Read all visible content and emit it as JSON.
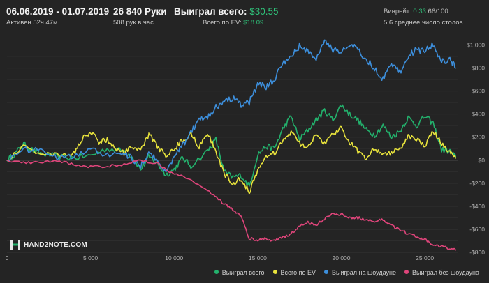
{
  "header": {
    "date_range": "06.06.2019 - 01.07.2019",
    "active": "Активен 52ч 47м",
    "hands": "26 840 Руки",
    "hands_per_hour": "508 рук в час",
    "won_total_label": "Выиграл всего:",
    "won_total_value": "$30.55",
    "ev_total_label": "Всего по EV:",
    "ev_total_value": "$18.09",
    "winrate_label": "Винрейт:",
    "winrate_value": "0.33",
    "winrate_unit": "66/100",
    "tables_avg": "5.6 среднее число столов"
  },
  "logo": {
    "text": "HAND2NOTE.COM"
  },
  "legend": [
    {
      "label": "Выиграл всего",
      "color": "#23b26d"
    },
    {
      "label": "Всего по EV",
      "color": "#e8e33c"
    },
    {
      "label": "Выиграл на шоудауне",
      "color": "#3d8fdc"
    },
    {
      "label": "Выиграл без шоудауна",
      "color": "#e0457b"
    }
  ],
  "chart_data": {
    "type": "line",
    "title": "",
    "xlabel": "Руки",
    "ylabel": "$",
    "xlim": [
      0,
      27000
    ],
    "ylim": [
      -800,
      1100
    ],
    "x_ticks": [
      0,
      5000,
      10000,
      15000,
      20000,
      25000
    ],
    "x_tick_labels": [
      "0",
      "5 000",
      "10 000",
      "15 000",
      "20 000",
      "25 000"
    ],
    "y_ticks": [
      -800,
      -600,
      -400,
      -200,
      0,
      200,
      400,
      600,
      800,
      1000
    ],
    "y_tick_labels": [
      "-$800",
      "-$600",
      "-$400",
      "-$200",
      "$0",
      "$200",
      "$400",
      "$600",
      "$800",
      "$1,000"
    ],
    "grid": true,
    "series": [
      {
        "name": "Выиграл всего",
        "color": "#23b26d",
        "points": [
          [
            0,
            0
          ],
          [
            500,
            60
          ],
          [
            1000,
            140
          ],
          [
            1500,
            90
          ],
          [
            2000,
            60
          ],
          [
            3000,
            30
          ],
          [
            4000,
            20
          ],
          [
            5000,
            40
          ],
          [
            6000,
            100
          ],
          [
            7000,
            80
          ],
          [
            7500,
            30
          ],
          [
            8000,
            -80
          ],
          [
            8500,
            30
          ],
          [
            9000,
            -30
          ],
          [
            9500,
            -130
          ],
          [
            10000,
            -80
          ],
          [
            10500,
            20
          ],
          [
            11000,
            -50
          ],
          [
            12000,
            80
          ],
          [
            12500,
            180
          ],
          [
            13000,
            -100
          ],
          [
            13500,
            -150
          ],
          [
            14000,
            -130
          ],
          [
            14500,
            -230
          ],
          [
            15000,
            50
          ],
          [
            15500,
            120
          ],
          [
            16000,
            100
          ],
          [
            16500,
            270
          ],
          [
            17000,
            380
          ],
          [
            17500,
            180
          ],
          [
            18000,
            260
          ],
          [
            18500,
            350
          ],
          [
            19000,
            430
          ],
          [
            19500,
            350
          ],
          [
            20000,
            480
          ],
          [
            20500,
            400
          ],
          [
            21000,
            350
          ],
          [
            21500,
            260
          ],
          [
            22000,
            220
          ],
          [
            22500,
            300
          ],
          [
            23000,
            200
          ],
          [
            23500,
            250
          ],
          [
            24000,
            370
          ],
          [
            24500,
            300
          ],
          [
            25000,
            380
          ],
          [
            25500,
            320
          ],
          [
            26000,
            90
          ],
          [
            26500,
            80
          ],
          [
            26840,
            31
          ]
        ]
      },
      {
        "name": "Всего по EV",
        "color": "#e8e33c",
        "points": [
          [
            0,
            0
          ],
          [
            1000,
            120
          ],
          [
            2000,
            60
          ],
          [
            3000,
            40
          ],
          [
            4000,
            60
          ],
          [
            4500,
            180
          ],
          [
            5000,
            250
          ],
          [
            5500,
            160
          ],
          [
            6000,
            180
          ],
          [
            6500,
            100
          ],
          [
            7000,
            60
          ],
          [
            7500,
            110
          ],
          [
            8000,
            80
          ],
          [
            8500,
            230
          ],
          [
            9000,
            120
          ],
          [
            9500,
            40
          ],
          [
            10000,
            100
          ],
          [
            10500,
            170
          ],
          [
            11000,
            230
          ],
          [
            11500,
            120
          ],
          [
            12000,
            230
          ],
          [
            12500,
            80
          ],
          [
            13000,
            -120
          ],
          [
            13500,
            -200
          ],
          [
            14000,
            -160
          ],
          [
            14500,
            -280
          ],
          [
            15000,
            -80
          ],
          [
            15500,
            30
          ],
          [
            16000,
            60
          ],
          [
            16500,
            170
          ],
          [
            17000,
            240
          ],
          [
            17500,
            150
          ],
          [
            18000,
            100
          ],
          [
            18500,
            230
          ],
          [
            19000,
            150
          ],
          [
            19500,
            220
          ],
          [
            20000,
            280
          ],
          [
            20500,
            160
          ],
          [
            21000,
            80
          ],
          [
            21500,
            20
          ],
          [
            22000,
            110
          ],
          [
            22500,
            40
          ],
          [
            23000,
            70
          ],
          [
            23500,
            100
          ],
          [
            24000,
            210
          ],
          [
            24500,
            190
          ],
          [
            25000,
            120
          ],
          [
            25500,
            250
          ],
          [
            26000,
            140
          ],
          [
            26500,
            60
          ],
          [
            26840,
            18
          ]
        ]
      },
      {
        "name": "Выиграл на шоудауне",
        "color": "#3d8fdc",
        "points": [
          [
            0,
            0
          ],
          [
            1000,
            90
          ],
          [
            2000,
            80
          ],
          [
            3000,
            30
          ],
          [
            4000,
            40
          ],
          [
            5000,
            90
          ],
          [
            6000,
            50
          ],
          [
            7000,
            60
          ],
          [
            7500,
            10
          ],
          [
            8000,
            -50
          ],
          [
            8500,
            60
          ],
          [
            9000,
            0
          ],
          [
            9500,
            -100
          ],
          [
            10000,
            20
          ],
          [
            10500,
            130
          ],
          [
            11000,
            240
          ],
          [
            11500,
            350
          ],
          [
            12000,
            380
          ],
          [
            12500,
            460
          ],
          [
            13000,
            520
          ],
          [
            13500,
            540
          ],
          [
            14000,
            480
          ],
          [
            14500,
            500
          ],
          [
            15000,
            660
          ],
          [
            15500,
            640
          ],
          [
            16000,
            700
          ],
          [
            16500,
            850
          ],
          [
            17000,
            900
          ],
          [
            17500,
            990
          ],
          [
            18000,
            950
          ],
          [
            18500,
            870
          ],
          [
            19000,
            1030
          ],
          [
            19500,
            960
          ],
          [
            20000,
            940
          ],
          [
            20500,
            1000
          ],
          [
            21000,
            960
          ],
          [
            21500,
            870
          ],
          [
            22000,
            800
          ],
          [
            22500,
            700
          ],
          [
            23000,
            830
          ],
          [
            23500,
            760
          ],
          [
            24000,
            900
          ],
          [
            24500,
            960
          ],
          [
            25000,
            950
          ],
          [
            25500,
            1000
          ],
          [
            26000,
            850
          ],
          [
            26500,
            880
          ],
          [
            26840,
            800
          ]
        ]
      },
      {
        "name": "Выиграл без шоудауна",
        "color": "#e0457b",
        "points": [
          [
            0,
            0
          ],
          [
            1000,
            -20
          ],
          [
            2000,
            -20
          ],
          [
            3000,
            0
          ],
          [
            4000,
            -40
          ],
          [
            5000,
            -60
          ],
          [
            6000,
            -50
          ],
          [
            7000,
            -40
          ],
          [
            8000,
            0
          ],
          [
            9000,
            -30
          ],
          [
            10000,
            -120
          ],
          [
            11000,
            -170
          ],
          [
            12000,
            -260
          ],
          [
            12500,
            -320
          ],
          [
            13000,
            -380
          ],
          [
            13500,
            -430
          ],
          [
            14000,
            -480
          ],
          [
            14500,
            -680
          ],
          [
            15000,
            -690
          ],
          [
            15500,
            -680
          ],
          [
            16000,
            -700
          ],
          [
            16500,
            -670
          ],
          [
            17000,
            -640
          ],
          [
            17500,
            -570
          ],
          [
            18000,
            -540
          ],
          [
            18500,
            -560
          ],
          [
            19000,
            -510
          ],
          [
            19500,
            -460
          ],
          [
            20000,
            -470
          ],
          [
            20500,
            -500
          ],
          [
            21000,
            -500
          ],
          [
            21500,
            -520
          ],
          [
            22000,
            -530
          ],
          [
            22500,
            -520
          ],
          [
            23000,
            -570
          ],
          [
            23500,
            -600
          ],
          [
            24000,
            -640
          ],
          [
            24500,
            -660
          ],
          [
            25000,
            -690
          ],
          [
            25500,
            -730
          ],
          [
            26000,
            -750
          ],
          [
            26500,
            -770
          ],
          [
            26840,
            -780
          ]
        ]
      }
    ]
  }
}
